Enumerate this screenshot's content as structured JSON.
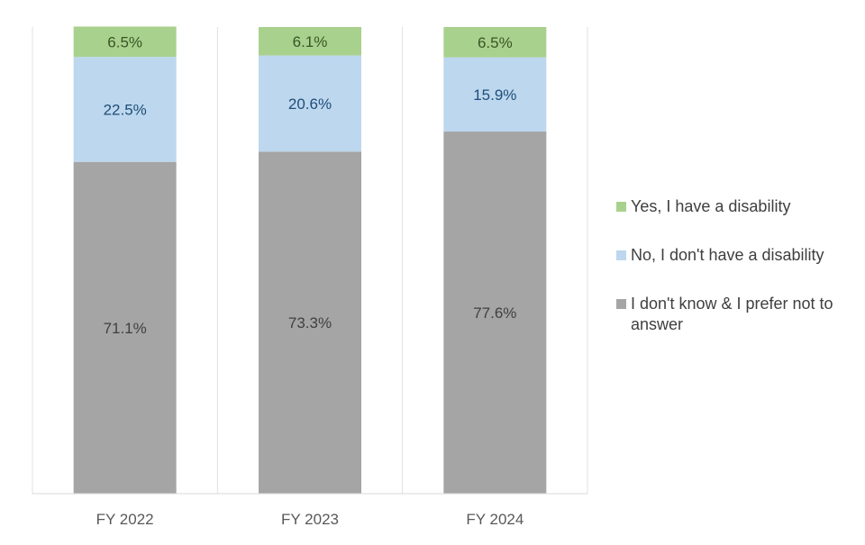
{
  "chart_data": {
    "type": "bar",
    "stacked": true,
    "categories": [
      "FY 2022",
      "FY 2023",
      "FY 2024"
    ],
    "series": [
      {
        "name": "I don't know & I prefer not to answer",
        "values": [
          71.1,
          73.3,
          77.6
        ],
        "labels": [
          "71.1%",
          "73.3%",
          "77.6%"
        ],
        "color": "#a5a5a5",
        "label_color": "#404040"
      },
      {
        "name": "No, I don't have a disability",
        "values": [
          22.5,
          20.6,
          15.9
        ],
        "labels": [
          "22.5%",
          "20.6%",
          "15.9%"
        ],
        "color": "#bdd7ee",
        "label_color": "#1f4e79"
      },
      {
        "name": "Yes, I have a disability",
        "values": [
          6.5,
          6.1,
          6.5
        ],
        "labels": [
          "6.5%",
          "6.1%",
          "6.5%"
        ],
        "color": "#a9d18e",
        "label_color": "#375623"
      }
    ],
    "ylim": [
      0,
      100
    ],
    "grid": false,
    "legend_position": "right",
    "legend_order": [
      "Yes, I have a disability",
      "No, I don't have a disability",
      "I don't know & I prefer not to answer"
    ]
  }
}
